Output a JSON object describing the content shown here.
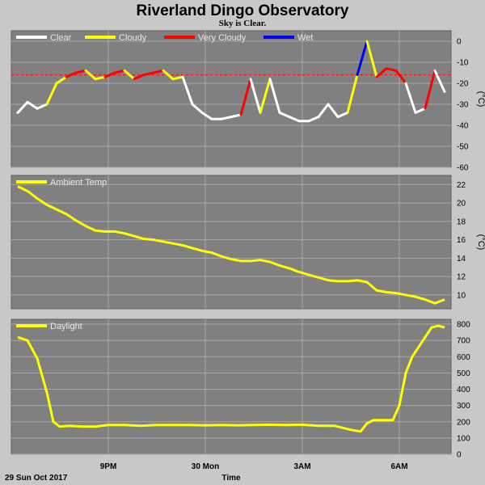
{
  "title": "Riverland Dingo Observatory",
  "subtitle": "Sky is Clear.",
  "footer": {
    "date": "29 Sun Oct 2017",
    "xlabel": "Time"
  },
  "colors": {
    "clear": "#ffffff",
    "cloudy": "#ffff00",
    "very_cloudy": "#ff0000",
    "wet": "#0000ff",
    "ambient": "#ffff00",
    "daylight": "#ffff00",
    "panel_bg": "#808080",
    "grid": "#a8a8a8",
    "threshold": "#ff0000"
  },
  "chart_data": [
    {
      "type": "line",
      "name": "sky",
      "legend": [
        "Clear",
        "Cloudy",
        "Very Cloudy",
        "Wet"
      ],
      "unit": "(°C)",
      "ylim": [
        -60,
        5
      ],
      "yticks": [
        "0",
        "-10",
        "-20",
        "-30",
        "-40",
        "-50",
        "-60"
      ],
      "threshold": -16,
      "x": [
        18.2,
        18.5,
        18.8,
        19.1,
        19.4,
        19.7,
        20.0,
        20.3,
        20.6,
        20.9,
        21.2,
        21.5,
        21.8,
        22.1,
        22.4,
        22.7,
        23.0,
        23.3,
        23.6,
        23.9,
        24.2,
        24.5,
        24.8,
        25.1,
        25.4,
        25.7,
        26.0,
        26.3,
        26.6,
        26.9,
        27.2,
        27.5,
        27.8,
        28.1,
        28.4,
        28.7,
        29.0,
        29.3,
        29.6,
        29.9,
        30.2,
        30.5,
        30.8,
        31.1,
        31.4
      ],
      "y": [
        -34,
        -29,
        -32,
        -30,
        -20,
        -17,
        -15,
        -14,
        -18,
        -17,
        -15,
        -14,
        -18,
        -16,
        -15,
        -14,
        -18,
        -17,
        -30,
        -34,
        -37,
        -37,
        -36,
        -35,
        -18,
        -34,
        -18,
        -34,
        -36,
        -38,
        -38,
        -36,
        -30,
        -36,
        -34,
        -16,
        0,
        -17,
        -13,
        -14,
        -20,
        -34,
        -32,
        -14,
        -24
      ],
      "state": [
        "clear",
        "clear",
        "clear",
        "clear",
        "cloudy",
        "cloudy",
        "very_cloudy",
        "very_cloudy",
        "cloudy",
        "cloudy",
        "very_cloudy",
        "very_cloudy",
        "cloudy",
        "very_cloudy",
        "very_cloudy",
        "very_cloudy",
        "cloudy",
        "cloudy",
        "clear",
        "clear",
        "clear",
        "clear",
        "clear",
        "clear",
        "very_cloudy",
        "clear",
        "cloudy",
        "clear",
        "clear",
        "clear",
        "clear",
        "clear",
        "clear",
        "clear",
        "clear",
        "cloudy",
        "wet",
        "cloudy",
        "very_cloudy",
        "very_cloudy",
        "very_cloudy",
        "clear",
        "clear",
        "very_cloudy",
        "clear"
      ]
    },
    {
      "type": "line",
      "name": "ambient",
      "legend": [
        "Ambient Temp"
      ],
      "unit": "(°C)",
      "ylim": [
        8.5,
        23
      ],
      "yticks": [
        "22",
        "20",
        "18",
        "16",
        "14",
        "12",
        "10"
      ],
      "x": [
        18.2,
        18.5,
        18.8,
        19.1,
        19.4,
        19.7,
        20.0,
        20.3,
        20.6,
        20.9,
        21.2,
        21.5,
        21.8,
        22.1,
        22.4,
        22.7,
        23.0,
        23.3,
        23.6,
        23.9,
        24.2,
        24.5,
        24.8,
        25.1,
        25.4,
        25.7,
        26.0,
        26.3,
        26.6,
        26.9,
        27.2,
        27.5,
        27.8,
        28.1,
        28.4,
        28.7,
        29.0,
        29.3,
        29.6,
        29.9,
        30.2,
        30.5,
        30.8,
        31.1,
        31.4
      ],
      "y": [
        21.8,
        21.3,
        20.5,
        19.8,
        19.3,
        18.8,
        18.1,
        17.5,
        17.0,
        16.9,
        16.9,
        16.7,
        16.4,
        16.1,
        16.0,
        15.8,
        15.6,
        15.4,
        15.1,
        14.8,
        14.6,
        14.2,
        13.9,
        13.7,
        13.7,
        13.8,
        13.6,
        13.2,
        12.9,
        12.5,
        12.2,
        11.9,
        11.6,
        11.5,
        11.5,
        11.6,
        11.4,
        10.5,
        10.3,
        10.2,
        10.0,
        9.8,
        9.5,
        9.1,
        9.5
      ]
    },
    {
      "type": "line",
      "name": "daylight",
      "legend": [
        "Daylight"
      ],
      "unit": "",
      "ylim": [
        0,
        830
      ],
      "yticks": [
        "800",
        "700",
        "600",
        "500",
        "400",
        "300",
        "200",
        "100",
        "0"
      ],
      "x": [
        18.2,
        18.5,
        18.8,
        19.1,
        19.3,
        19.5,
        19.8,
        20.2,
        20.6,
        21.0,
        21.5,
        22.0,
        22.5,
        23.0,
        23.5,
        24.0,
        24.5,
        25.0,
        25.5,
        26.0,
        26.5,
        27.0,
        27.5,
        28.0,
        28.5,
        28.8,
        29.0,
        29.2,
        29.4,
        29.8,
        30.0,
        30.2,
        30.4,
        30.6,
        30.8,
        31.0,
        31.2,
        31.4
      ],
      "y": [
        720,
        700,
        590,
        380,
        200,
        170,
        175,
        170,
        170,
        180,
        180,
        175,
        180,
        180,
        180,
        178,
        180,
        178,
        180,
        182,
        180,
        182,
        175,
        175,
        150,
        140,
        190,
        210,
        210,
        210,
        300,
        500,
        600,
        660,
        720,
        780,
        790,
        780
      ]
    }
  ],
  "x_axis": {
    "xlim": [
      18.0,
      31.6
    ],
    "ticks": [
      {
        "x": 21,
        "label": "9PM"
      },
      {
        "x": 24,
        "label": "30 Mon"
      },
      {
        "x": 27,
        "label": "3AM"
      },
      {
        "x": 30,
        "label": "6AM"
      }
    ]
  }
}
